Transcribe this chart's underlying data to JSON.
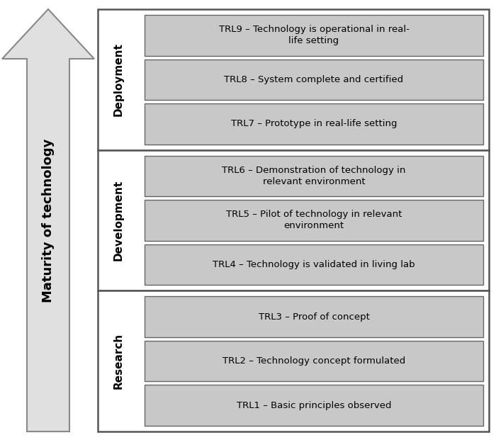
{
  "arrow_label": "Maturity of technology",
  "groups": [
    {
      "name": "Deployment",
      "items": [
        "TRL9 – Technology is operational in real-\nlife setting",
        "TRL8 – System complete and certified",
        "TRL7 – Prototype in real-life setting"
      ]
    },
    {
      "name": "Development",
      "items": [
        "TRL6 – Demonstration of technology in\nrelevant environment",
        "TRL5 – Pilot of technology in relevant\nenvironment",
        "TRL4 – Technology is validated in living lab"
      ]
    },
    {
      "name": "Research",
      "items": [
        "TRL3 – Proof of concept",
        "TRL2 – Technology concept formulated",
        "TRL1 – Basic principles observed"
      ]
    }
  ],
  "bg_color": "#ffffff",
  "outer_box_fill": "#ffffff",
  "outer_box_edge": "#555555",
  "inner_box_fill": "#c8c8c8",
  "inner_box_edge": "#666666",
  "arrow_fill": "#e0e0e0",
  "arrow_edge": "#888888",
  "text_color": "#000000",
  "font_size_item": 9.5,
  "font_size_group": 11,
  "font_size_arrow": 13
}
